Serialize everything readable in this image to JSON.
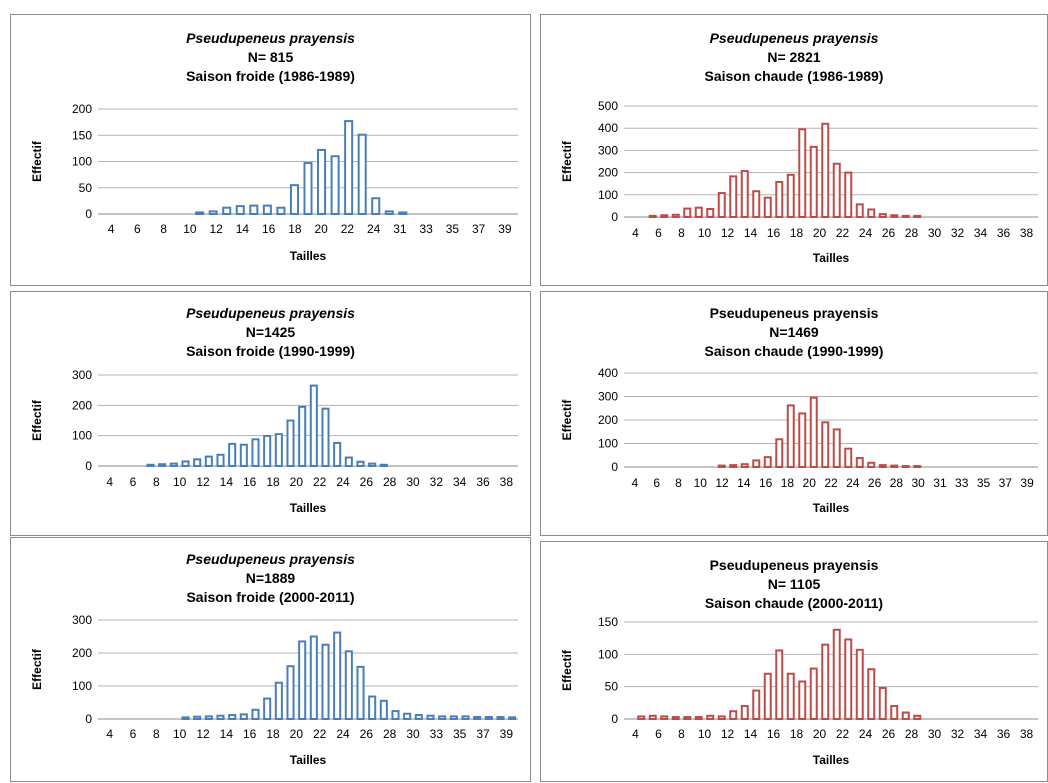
{
  "chart_data": [
    {
      "type": "bar",
      "title": "Pseudupeneus prayensis",
      "title_italic": true,
      "n_label": "N= 815",
      "subtitle": "Saison froide (1986-1989)",
      "xlabel": "Tailles",
      "ylabel": "Effectif",
      "ylim": [
        0,
        200
      ],
      "yticks": [
        0,
        50,
        100,
        150,
        200
      ],
      "color": "#4a7ebb",
      "x_tick_labels": [
        "4",
        "6",
        "8",
        "10",
        "12",
        "14",
        "16",
        "18",
        "20",
        "22",
        "24",
        "31",
        "33",
        "35",
        "37",
        "39"
      ],
      "categories": [
        "4",
        "5",
        "6",
        "7",
        "8",
        "9",
        "10",
        "11",
        "12",
        "13",
        "14",
        "15",
        "16",
        "17",
        "18",
        "19",
        "20",
        "21",
        "22",
        "23",
        "24",
        "30",
        "31",
        "32",
        "33",
        "34",
        "35",
        "36",
        "37",
        "38",
        "39"
      ],
      "values": [
        0,
        0,
        0,
        0,
        0,
        0,
        0,
        3,
        5,
        12,
        15,
        16,
        16,
        12,
        55,
        97,
        122,
        110,
        177,
        151,
        30,
        5,
        3,
        0,
        0,
        0,
        0,
        0,
        0,
        0,
        0
      ]
    },
    {
      "type": "bar",
      "title": "Pseudupeneus prayensis",
      "title_italic": true,
      "n_label": "N= 2821",
      "subtitle": "Saison chaude (1986-1989)",
      "xlabel": "Tailles",
      "ylabel": "Effectif",
      "ylim": [
        0,
        500
      ],
      "yticks": [
        0,
        100,
        200,
        300,
        400,
        500
      ],
      "color": "#be4b48",
      "x_tick_labels": [
        "4",
        "6",
        "8",
        "10",
        "12",
        "14",
        "16",
        "18",
        "20",
        "22",
        "24",
        "26",
        "28",
        "30",
        "32",
        "34",
        "36",
        "38"
      ],
      "categories": [
        "4",
        "5",
        "6",
        "7",
        "8",
        "9",
        "10",
        "11",
        "12",
        "13",
        "14",
        "15",
        "16",
        "17",
        "18",
        "19",
        "20",
        "21",
        "22",
        "23",
        "24",
        "25",
        "26",
        "27",
        "28",
        "29",
        "30",
        "31",
        "32",
        "33",
        "34",
        "35",
        "36",
        "37",
        "38",
        "39"
      ],
      "values": [
        0,
        0,
        5,
        8,
        10,
        38,
        42,
        36,
        108,
        183,
        207,
        116,
        87,
        158,
        190,
        395,
        316,
        420,
        240,
        200,
        57,
        34,
        13,
        8,
        5,
        5,
        0,
        0,
        0,
        0,
        0,
        0,
        0,
        0,
        0,
        0
      ]
    },
    {
      "type": "bar",
      "title": "Pseudupeneus prayensis",
      "title_italic": true,
      "n_label": "N=1425",
      "subtitle": "Saison froide (1990-1999)",
      "xlabel": "Tailles",
      "ylabel": "Effectif",
      "ylim": [
        0,
        300
      ],
      "yticks": [
        0,
        100,
        200,
        300
      ],
      "color": "#4a7ebb",
      "x_tick_labels": [
        "4",
        "6",
        "8",
        "10",
        "12",
        "14",
        "16",
        "18",
        "20",
        "22",
        "24",
        "26",
        "28",
        "30",
        "32",
        "34",
        "36",
        "38"
      ],
      "categories": [
        "4",
        "5",
        "6",
        "7",
        "8",
        "9",
        "10",
        "11",
        "12",
        "13",
        "14",
        "15",
        "16",
        "17",
        "18",
        "19",
        "20",
        "21",
        "22",
        "23",
        "24",
        "25",
        "26",
        "27",
        "28",
        "29",
        "30",
        "31",
        "32",
        "33",
        "34",
        "35",
        "36",
        "37",
        "38",
        "39"
      ],
      "values": [
        0,
        0,
        0,
        0,
        4,
        6,
        8,
        15,
        22,
        31,
        37,
        73,
        70,
        88,
        99,
        105,
        150,
        195,
        265,
        189,
        76,
        28,
        14,
        8,
        4,
        0,
        0,
        0,
        0,
        0,
        0,
        0,
        0,
        0,
        0,
        0
      ]
    },
    {
      "type": "bar",
      "title": "Pseudupeneus prayensis",
      "title_italic": false,
      "n_label": "N=1469",
      "subtitle": "Saison chaude (1990-1999)",
      "xlabel": "Tailles",
      "ylabel": "Effectif",
      "ylim": [
        0,
        400
      ],
      "yticks": [
        0,
        100,
        200,
        300,
        400
      ],
      "color": "#be4b48",
      "x_tick_labels": [
        "4",
        "6",
        "8",
        "10",
        "12",
        "14",
        "16",
        "18",
        "20",
        "22",
        "24",
        "26",
        "28",
        "30",
        "31",
        "33",
        "35",
        "37",
        "39"
      ],
      "categories": [
        "4",
        "5",
        "6",
        "7",
        "8",
        "9",
        "10",
        "11",
        "12",
        "13",
        "14",
        "15",
        "16",
        "17",
        "18",
        "19",
        "20",
        "21",
        "22",
        "23",
        "24",
        "25",
        "26",
        "27",
        "28",
        "29",
        "30",
        "31",
        "32",
        "33",
        "34",
        "35",
        "36",
        "37",
        "38",
        "39"
      ],
      "values": [
        0,
        0,
        0,
        0,
        0,
        0,
        0,
        0,
        6,
        8,
        12,
        28,
        42,
        118,
        262,
        228,
        295,
        190,
        160,
        78,
        38,
        18,
        8,
        6,
        4,
        4,
        0,
        0,
        0,
        0,
        0,
        0,
        0,
        0,
        0,
        0
      ]
    },
    {
      "type": "bar",
      "title": "Pseudupeneus prayensis",
      "title_italic": true,
      "n_label": "N=1889",
      "subtitle": "Saison froide (2000-2011)",
      "xlabel": "Tailles",
      "ylabel": "Effectif",
      "ylim": [
        0,
        300
      ],
      "yticks": [
        0,
        100,
        200,
        300
      ],
      "color": "#4a7ebb",
      "x_tick_labels": [
        "4",
        "6",
        "8",
        "10",
        "12",
        "14",
        "16",
        "18",
        "20",
        "22",
        "24",
        "26",
        "28",
        "30",
        "33",
        "35",
        "37",
        "39"
      ],
      "categories": [
        "4",
        "5",
        "6",
        "7",
        "8",
        "9",
        "10",
        "11",
        "12",
        "13",
        "14",
        "15",
        "16",
        "17",
        "18",
        "19",
        "20",
        "21",
        "22",
        "23",
        "24",
        "25",
        "26",
        "27",
        "28",
        "29",
        "30",
        "31",
        "32",
        "33",
        "34",
        "35",
        "36",
        "37",
        "38",
        "39"
      ],
      "values": [
        0,
        0,
        0,
        0,
        0,
        0,
        0,
        5,
        7,
        8,
        10,
        12,
        14,
        28,
        62,
        110,
        160,
        235,
        250,
        225,
        262,
        205,
        158,
        68,
        55,
        24,
        16,
        12,
        10,
        8,
        8,
        8,
        6,
        6,
        6,
        5
      ]
    },
    {
      "type": "bar",
      "title": "Pseudupeneus prayensis",
      "title_italic": false,
      "n_label": "N= 1105",
      "subtitle": "Saison chaude (2000-2011)",
      "xlabel": "Tailles",
      "ylabel": "Effectif",
      "ylim": [
        0,
        150
      ],
      "yticks": [
        0,
        50,
        100,
        150
      ],
      "color": "#be4b48",
      "x_tick_labels": [
        "4",
        "6",
        "8",
        "10",
        "12",
        "14",
        "16",
        "18",
        "20",
        "22",
        "24",
        "26",
        "28",
        "30",
        "32",
        "34",
        "36",
        "38"
      ],
      "categories": [
        "4",
        "5",
        "6",
        "7",
        "8",
        "9",
        "10",
        "11",
        "12",
        "13",
        "14",
        "15",
        "16",
        "17",
        "18",
        "19",
        "20",
        "21",
        "22",
        "23",
        "24",
        "25",
        "26",
        "27",
        "28",
        "29",
        "30",
        "31",
        "32",
        "33",
        "34",
        "35",
        "36",
        "37",
        "38",
        "39"
      ],
      "values": [
        0,
        4,
        5,
        4,
        3,
        3,
        3,
        5,
        4,
        12,
        20,
        44,
        70,
        106,
        70,
        58,
        78,
        115,
        138,
        123,
        107,
        77,
        48,
        20,
        10,
        5,
        0,
        0,
        0,
        0,
        0,
        0,
        0,
        0,
        0,
        0
      ]
    }
  ]
}
